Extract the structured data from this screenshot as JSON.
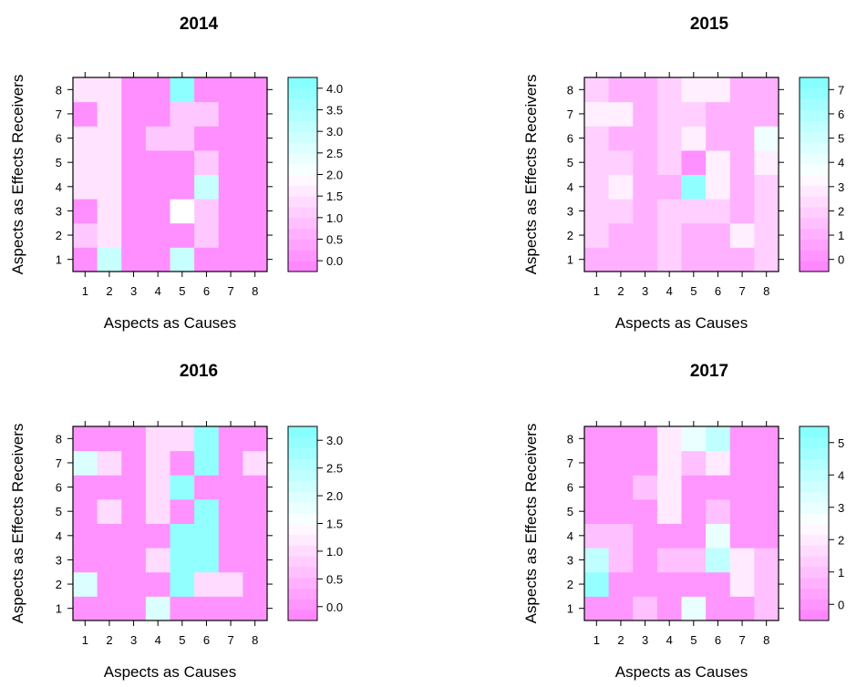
{
  "chart_data": [
    {
      "type": "heatmap",
      "title": "2014",
      "xlabel": "Aspects as Causes",
      "ylabel": "Aspects as Effects Receivers",
      "x": [
        1,
        2,
        3,
        4,
        5,
        6,
        7,
        8
      ],
      "y": [
        1,
        2,
        3,
        4,
        5,
        6,
        7,
        8
      ],
      "colorbar_ticks": [
        "0.0",
        "0.5",
        "1.0",
        "1.5",
        "2.0",
        "2.5",
        "3.0",
        "3.5",
        "4.0"
      ],
      "zlim": [
        -0.25,
        4.25
      ],
      "values": [
        [
          0,
          3,
          0,
          0,
          3,
          0,
          0,
          0
        ],
        [
          1,
          1.5,
          0,
          0,
          0,
          1,
          0,
          0
        ],
        [
          0,
          1.5,
          0,
          0,
          2,
          1,
          0,
          0
        ],
        [
          1.5,
          1.5,
          0,
          0,
          0,
          3,
          0,
          0
        ],
        [
          1.5,
          1.5,
          0,
          0,
          0,
          1,
          0,
          0
        ],
        [
          1.5,
          1.5,
          0,
          1,
          1,
          0,
          0,
          0
        ],
        [
          0,
          1.5,
          0,
          0,
          1,
          1,
          0,
          0
        ],
        [
          1.5,
          1.5,
          0,
          0,
          4,
          0,
          0,
          0
        ]
      ]
    },
    {
      "type": "heatmap",
      "title": "2015",
      "xlabel": "Aspects as Causes",
      "ylabel": "Aspects as Effects Receivers",
      "x": [
        1,
        2,
        3,
        4,
        5,
        6,
        7,
        8
      ],
      "y": [
        1,
        2,
        3,
        4,
        5,
        6,
        7,
        8
      ],
      "colorbar_ticks": [
        "0",
        "1",
        "2",
        "3",
        "4",
        "5",
        "6",
        "7"
      ],
      "zlim": [
        -0.5,
        7.5
      ],
      "values": [
        [
          1,
          1,
          1,
          2,
          1,
          1,
          1,
          2
        ],
        [
          2,
          1,
          1,
          2,
          1,
          1,
          3,
          2
        ],
        [
          2,
          2,
          1,
          2,
          2,
          2,
          1,
          2
        ],
        [
          2,
          3,
          1,
          1,
          7,
          3,
          1,
          2
        ],
        [
          2,
          2,
          1,
          2,
          0,
          3,
          1,
          3
        ],
        [
          2,
          1,
          1,
          2,
          3,
          1,
          1,
          4
        ],
        [
          3,
          3,
          1,
          2,
          2,
          1,
          1,
          1
        ],
        [
          2,
          1,
          1,
          2,
          3,
          3,
          1,
          1
        ]
      ]
    },
    {
      "type": "heatmap",
      "title": "2016",
      "xlabel": "Aspects as Causes",
      "ylabel": "Aspects as Effects Receivers",
      "x": [
        1,
        2,
        3,
        4,
        5,
        6,
        7,
        8
      ],
      "y": [
        1,
        2,
        3,
        4,
        5,
        6,
        7,
        8
      ],
      "colorbar_ticks": [
        "0.0",
        "0.5",
        "1.0",
        "1.5",
        "2.0",
        "2.5",
        "3.0"
      ],
      "zlim": [
        -0.25,
        3.25
      ],
      "values": [
        [
          0,
          0,
          0,
          2,
          0,
          0,
          0,
          0
        ],
        [
          2,
          0,
          0,
          0,
          3,
          1,
          1,
          0
        ],
        [
          0,
          0,
          0,
          1,
          3,
          3,
          0,
          0
        ],
        [
          0,
          0,
          0,
          0,
          3,
          3,
          0,
          0
        ],
        [
          0,
          1,
          0,
          1,
          0,
          3,
          0,
          0
        ],
        [
          0,
          0,
          0,
          1,
          3,
          0,
          0,
          0
        ],
        [
          2,
          1,
          0,
          1,
          0,
          3,
          0,
          1
        ],
        [
          0,
          0,
          0,
          1,
          1,
          3,
          0,
          0
        ]
      ]
    },
    {
      "type": "heatmap",
      "title": "2017",
      "xlabel": "Aspects as Causes",
      "ylabel": "Aspects as Effects Receivers",
      "x": [
        1,
        2,
        3,
        4,
        5,
        6,
        7,
        8
      ],
      "y": [
        1,
        2,
        3,
        4,
        5,
        6,
        7,
        8
      ],
      "colorbar_ticks": [
        "0",
        "1",
        "2",
        "3",
        "4",
        "5"
      ],
      "zlim": [
        -0.5,
        5.5
      ],
      "values": [
        [
          0,
          0,
          1,
          0,
          3,
          0,
          0,
          1
        ],
        [
          5,
          0,
          0,
          0,
          0,
          0,
          2,
          1
        ],
        [
          4,
          1,
          0,
          1,
          1,
          4,
          2,
          1
        ],
        [
          1,
          1,
          0,
          0,
          0,
          3,
          0,
          0
        ],
        [
          0,
          0,
          0,
          2,
          0,
          1,
          0,
          0
        ],
        [
          0,
          0,
          1,
          2,
          0,
          0,
          0,
          0
        ],
        [
          0,
          0,
          0,
          2,
          1,
          2,
          0,
          0
        ],
        [
          0,
          0,
          0,
          2,
          3,
          4,
          0,
          0
        ]
      ]
    }
  ]
}
